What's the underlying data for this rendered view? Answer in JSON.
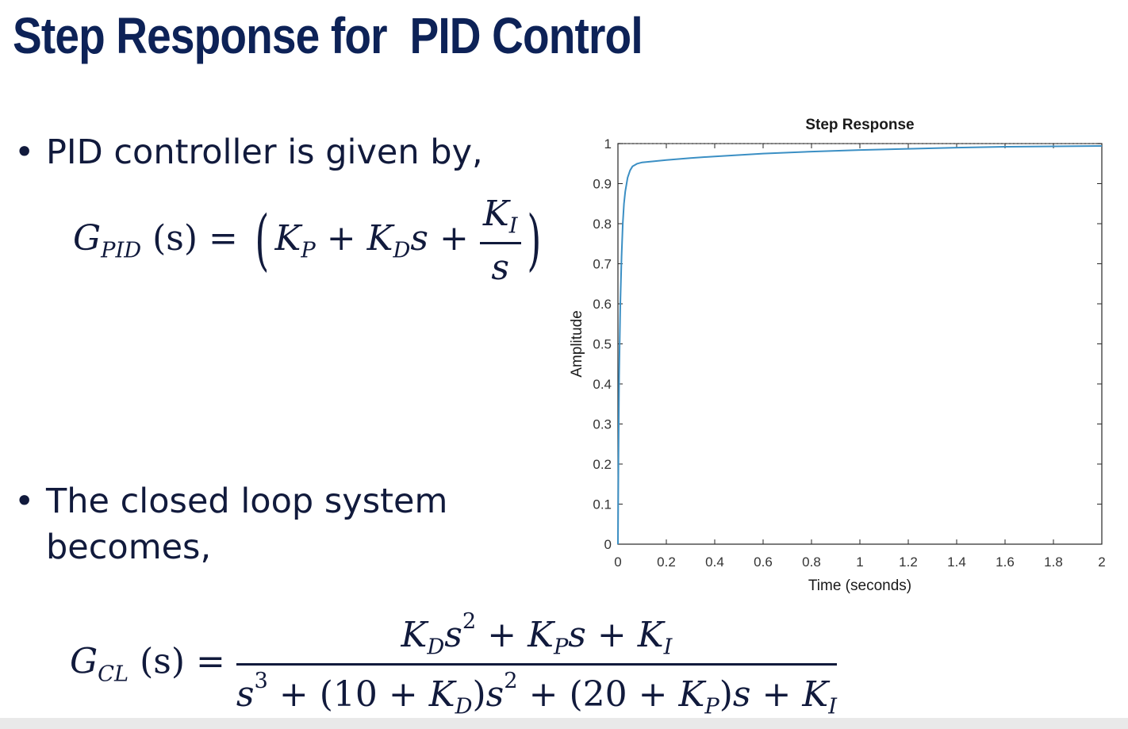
{
  "slide": {
    "title": "Step Response for  PID Control",
    "bullet_char": "•",
    "bullets": [
      {
        "line1": "PID controller is given by,",
        "line2": ""
      },
      {
        "line1": "The closed loop system",
        "line2": "becomes,"
      }
    ],
    "pid_equation": {
      "lhs_symbol": "G",
      "lhs_sub": "PID",
      "lhs_arg": "(s) =",
      "kp": "K",
      "kp_sub": "P",
      "plus": "+",
      "kd": "K",
      "kd_sub": "D",
      "kd_var": "s",
      "ki": "K",
      "ki_sub": "I",
      "den": "s"
    },
    "cl_equation": {
      "lhs_symbol": "G",
      "lhs_sub": "CL",
      "lhs_arg": "(s) =",
      "num": {
        "kd": "K",
        "kd_sub": "D",
        "s2": "s",
        "exp2": "2",
        "plus1": "+",
        "kp": "K",
        "kp_sub": "P",
        "s1": "s",
        "plus2": "+",
        "ki": "K",
        "ki_sub": "I"
      },
      "den": {
        "s3": "s",
        "exp3": "3",
        "plus1": "+",
        "open1": "(10 +",
        "kd": "K",
        "kd_sub": "D",
        "close1": ")",
        "s2": "s",
        "exp2": "2",
        "plus2": "+",
        "open2": "(20 +",
        "kp": "K",
        "kp_sub": "P",
        "close2": ")",
        "s1": "s",
        "plus3": "+",
        "ki": "K",
        "ki_sub": "I"
      }
    }
  },
  "colors": {
    "title": "#0d2257",
    "text": "#111a3c",
    "line": "#3b8fc4",
    "axis": "#262626",
    "dashed": "#6e6e6e"
  },
  "chart_data": {
    "type": "line",
    "title": "Step Response",
    "xlabel": "Time (seconds)",
    "ylabel": "Amplitude",
    "xlim": [
      0,
      2
    ],
    "ylim": [
      0,
      1
    ],
    "xticks": [
      0,
      0.2,
      0.4,
      0.6,
      0.8,
      1,
      1.2,
      1.4,
      1.6,
      1.8,
      2
    ],
    "xtick_labels": [
      "0",
      "0.2",
      "0.4",
      "0.6",
      "0.8",
      "1",
      "1.2",
      "1.4",
      "1.6",
      "1.8",
      "2"
    ],
    "yticks": [
      0,
      0.1,
      0.2,
      0.3,
      0.4,
      0.5,
      0.6,
      0.7,
      0.8,
      0.9,
      1
    ],
    "ytick_labels": [
      "0",
      "0.1",
      "0.2",
      "0.3",
      "0.4",
      "0.5",
      "0.6",
      "0.7",
      "0.8",
      "0.9",
      "1"
    ],
    "reference_line": 1,
    "grid": false,
    "series": [
      {
        "x": [
          0,
          0.002,
          0.005,
          0.01,
          0.015,
          0.02,
          0.025,
          0.03,
          0.04,
          0.05,
          0.06,
          0.08,
          0.1,
          0.15,
          0.2,
          0.3,
          0.4,
          0.6,
          0.8,
          1.0,
          1.2,
          1.4,
          1.6,
          1.8,
          2.0
        ],
        "y": [
          0,
          0.2,
          0.42,
          0.6,
          0.72,
          0.8,
          0.85,
          0.88,
          0.915,
          0.933,
          0.943,
          0.95,
          0.953,
          0.956,
          0.959,
          0.964,
          0.968,
          0.975,
          0.98,
          0.984,
          0.987,
          0.99,
          0.992,
          0.993,
          0.994
        ]
      }
    ]
  }
}
